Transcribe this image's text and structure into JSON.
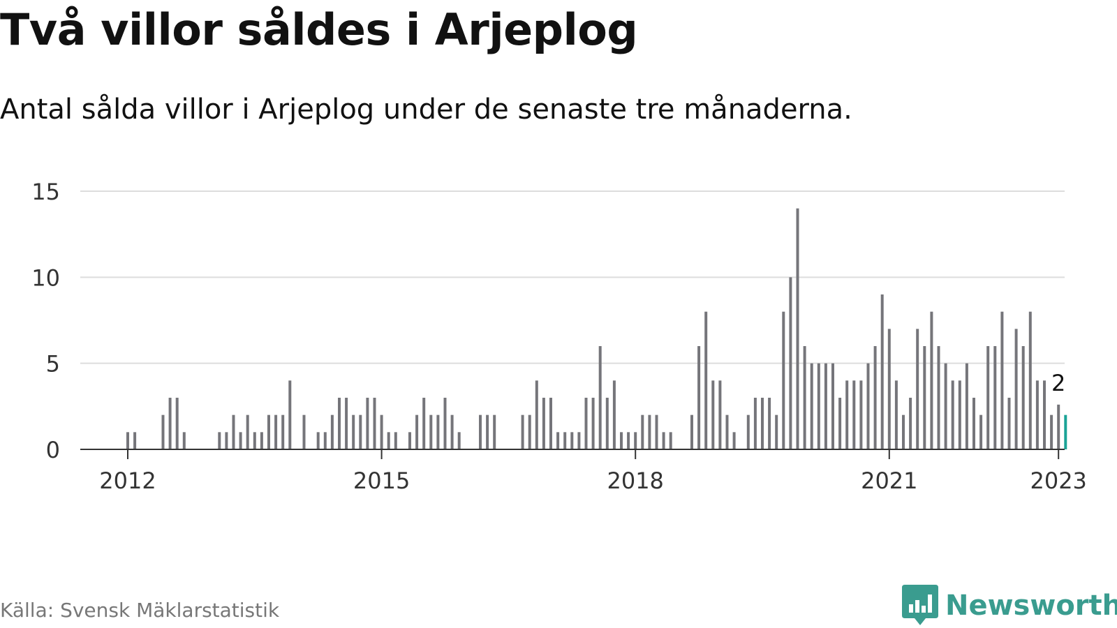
{
  "title": "Två villor såldes i Arjeplog",
  "subtitle": "Antal sålda villor i Arjeplog under de senaste tre månaderna.",
  "source": "Källa: Svensk Mäklarstatistik",
  "brand": {
    "name": "Newsworthy",
    "icon": "newsworthy-logo-icon",
    "color": "#3a9c8f"
  },
  "colors": {
    "bar": "#75757a",
    "highlight": "#1aa396",
    "grid": "#dddddd",
    "axis": "#333333",
    "tick_text": "#333333"
  },
  "chart_data": {
    "type": "bar",
    "title": "Två villor såldes i Arjeplog",
    "xlabel": "",
    "ylabel": "",
    "ylim": [
      0,
      15
    ],
    "yticks": [
      0,
      5,
      10,
      15
    ],
    "xticks": [
      {
        "label": "2012",
        "month_index": 0
      },
      {
        "label": "2015",
        "month_index": 36
      },
      {
        "label": "2018",
        "month_index": 72
      },
      {
        "label": "2021",
        "month_index": 108
      },
      {
        "label": "2023",
        "month_index": 132
      }
    ],
    "x_start": "2012-01",
    "x_end": "2023-01",
    "values": [
      1,
      1,
      0,
      0,
      0,
      2,
      3,
      3,
      1,
      0,
      0,
      0,
      0,
      1,
      1,
      2,
      1,
      2,
      1,
      1,
      2,
      2,
      2,
      4,
      0,
      2,
      0,
      1,
      1,
      2,
      3,
      3,
      2,
      2,
      3,
      3,
      2,
      1,
      1,
      0,
      1,
      2,
      3,
      2,
      2,
      3,
      2,
      1,
      0,
      0,
      2,
      2,
      2,
      0,
      0,
      0,
      2,
      2,
      4,
      3,
      3,
      1,
      1,
      1,
      1,
      3,
      3,
      6,
      3,
      4,
      1,
      1,
      1,
      2,
      2,
      2,
      1,
      1,
      0,
      0,
      2,
      6,
      8,
      4,
      4,
      2,
      1,
      0,
      2,
      3,
      3,
      3,
      2,
      8,
      10,
      14,
      6,
      5,
      5,
      5,
      5,
      3,
      4,
      4,
      4,
      5,
      6,
      9,
      7,
      4,
      2,
      3,
      7,
      6,
      8,
      6,
      5,
      4,
      4,
      5,
      3,
      2,
      6,
      6,
      8,
      3,
      7,
      6,
      8,
      4,
      4,
      2,
      2.6,
      2
    ],
    "highlight_last": true,
    "annotation": {
      "text": "2",
      "month_index": 132
    }
  }
}
